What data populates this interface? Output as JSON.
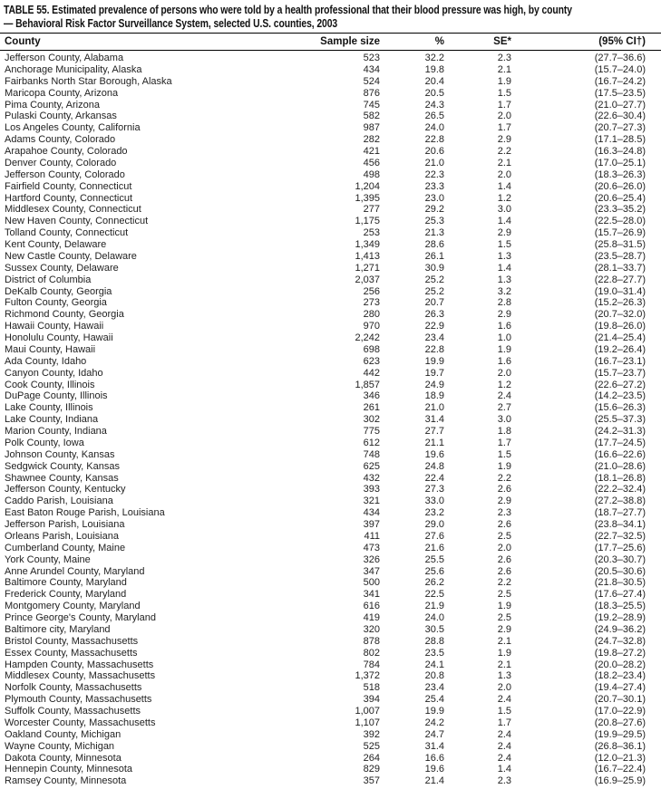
{
  "table": {
    "title_line1": "TABLE 55. Estimated prevalence of persons who were told by a health professional that their blood pressure was high, by county",
    "title_line2": "— Behavioral Risk Factor Surveillance System, selected U.S. counties, 2003",
    "columns": [
      "County",
      "Sample size",
      "%",
      "SE*",
      "(95% CI†)"
    ],
    "rows": [
      [
        "Jefferson County, Alabama",
        "523",
        "32.2",
        "2.3",
        "(27.7–36.6)"
      ],
      [
        "Anchorage Municipality, Alaska",
        "434",
        "19.8",
        "2.1",
        "(15.7–24.0)"
      ],
      [
        "Fairbanks North Star Borough, Alaska",
        "524",
        "20.4",
        "1.9",
        "(16.7–24.2)"
      ],
      [
        "Maricopa County, Arizona",
        "876",
        "20.5",
        "1.5",
        "(17.5–23.5)"
      ],
      [
        "Pima County, Arizona",
        "745",
        "24.3",
        "1.7",
        "(21.0–27.7)"
      ],
      [
        "Pulaski County, Arkansas",
        "582",
        "26.5",
        "2.0",
        "(22.6–30.4)"
      ],
      [
        "Los Angeles County, California",
        "987",
        "24.0",
        "1.7",
        "(20.7–27.3)"
      ],
      [
        "Adams County, Colorado",
        "282",
        "22.8",
        "2.9",
        "(17.1–28.5)"
      ],
      [
        "Arapahoe County, Colorado",
        "421",
        "20.6",
        "2.2",
        "(16.3–24.8)"
      ],
      [
        "Denver County, Colorado",
        "456",
        "21.0",
        "2.1",
        "(17.0–25.1)"
      ],
      [
        "Jefferson County, Colorado",
        "498",
        "22.3",
        "2.0",
        "(18.3–26.3)"
      ],
      [
        "Fairfield County, Connecticut",
        "1,204",
        "23.3",
        "1.4",
        "(20.6–26.0)"
      ],
      [
        "Hartford County, Connecticut",
        "1,395",
        "23.0",
        "1.2",
        "(20.6–25.4)"
      ],
      [
        "Middlesex County, Connecticut",
        "277",
        "29.2",
        "3.0",
        "(23.3–35.2)"
      ],
      [
        "New Haven County, Connecticut",
        "1,175",
        "25.3",
        "1.4",
        "(22.5–28.0)"
      ],
      [
        "Tolland County, Connecticut",
        "253",
        "21.3",
        "2.9",
        "(15.7–26.9)"
      ],
      [
        "Kent County, Delaware",
        "1,349",
        "28.6",
        "1.5",
        "(25.8–31.5)"
      ],
      [
        "New Castle County, Delaware",
        "1,413",
        "26.1",
        "1.3",
        "(23.5–28.7)"
      ],
      [
        "Sussex County, Delaware",
        "1,271",
        "30.9",
        "1.4",
        "(28.1–33.7)"
      ],
      [
        "District of Columbia",
        "2,037",
        "25.2",
        "1.3",
        "(22.8–27.7)"
      ],
      [
        "DeKalb County, Georgia",
        "256",
        "25.2",
        "3.2",
        "(19.0–31.4)"
      ],
      [
        "Fulton County, Georgia",
        "273",
        "20.7",
        "2.8",
        "(15.2–26.3)"
      ],
      [
        "Richmond County, Georgia",
        "280",
        "26.3",
        "2.9",
        "(20.7–32.0)"
      ],
      [
        "Hawaii County, Hawaii",
        "970",
        "22.9",
        "1.6",
        "(19.8–26.0)"
      ],
      [
        "Honolulu County, Hawaii",
        "2,242",
        "23.4",
        "1.0",
        "(21.4–25.4)"
      ],
      [
        "Maui County, Hawaii",
        "698",
        "22.8",
        "1.9",
        "(19.2–26.4)"
      ],
      [
        "Ada County, Idaho",
        "623",
        "19.9",
        "1.6",
        "(16.7–23.1)"
      ],
      [
        "Canyon County, Idaho",
        "442",
        "19.7",
        "2.0",
        "(15.7–23.7)"
      ],
      [
        "Cook County, Illinois",
        "1,857",
        "24.9",
        "1.2",
        "(22.6–27.2)"
      ],
      [
        "DuPage County, Illinois",
        "346",
        "18.9",
        "2.4",
        "(14.2–23.5)"
      ],
      [
        "Lake County, Illinois",
        "261",
        "21.0",
        "2.7",
        "(15.6–26.3)"
      ],
      [
        "Lake County, Indiana",
        "302",
        "31.4",
        "3.0",
        "(25.5–37.3)"
      ],
      [
        "Marion County, Indiana",
        "775",
        "27.7",
        "1.8",
        "(24.2–31.3)"
      ],
      [
        "Polk County, Iowa",
        "612",
        "21.1",
        "1.7",
        "(17.7–24.5)"
      ],
      [
        "Johnson County, Kansas",
        "748",
        "19.6",
        "1.5",
        "(16.6–22.6)"
      ],
      [
        "Sedgwick County, Kansas",
        "625",
        "24.8",
        "1.9",
        "(21.0–28.6)"
      ],
      [
        "Shawnee County, Kansas",
        "432",
        "22.4",
        "2.2",
        "(18.1–26.8)"
      ],
      [
        "Jefferson County, Kentucky",
        "393",
        "27.3",
        "2.6",
        "(22.2–32.4)"
      ],
      [
        "Caddo Parish, Louisiana",
        "321",
        "33.0",
        "2.9",
        "(27.2–38.8)"
      ],
      [
        "East Baton Rouge Parish, Louisiana",
        "434",
        "23.2",
        "2.3",
        "(18.7–27.7)"
      ],
      [
        "Jefferson Parish, Louisiana",
        "397",
        "29.0",
        "2.6",
        "(23.8–34.1)"
      ],
      [
        "Orleans Parish, Louisiana",
        "411",
        "27.6",
        "2.5",
        "(22.7–32.5)"
      ],
      [
        "Cumberland County, Maine",
        "473",
        "21.6",
        "2.0",
        "(17.7–25.6)"
      ],
      [
        "York County, Maine",
        "326",
        "25.5",
        "2.6",
        "(20.3–30.7)"
      ],
      [
        "Anne Arundel County, Maryland",
        "347",
        "25.6",
        "2.6",
        "(20.5–30.6)"
      ],
      [
        "Baltimore County, Maryland",
        "500",
        "26.2",
        "2.2",
        "(21.8–30.5)"
      ],
      [
        "Frederick County, Maryland",
        "341",
        "22.5",
        "2.5",
        "(17.6–27.4)"
      ],
      [
        "Montgomery County, Maryland",
        "616",
        "21.9",
        "1.9",
        "(18.3–25.5)"
      ],
      [
        "Prince George's County, Maryland",
        "419",
        "24.0",
        "2.5",
        "(19.2–28.9)"
      ],
      [
        "Baltimore city, Maryland",
        "320",
        "30.5",
        "2.9",
        "(24.9–36.2)"
      ],
      [
        "Bristol County, Massachusetts",
        "878",
        "28.8",
        "2.1",
        "(24.7–32.8)"
      ],
      [
        "Essex County, Massachusetts",
        "802",
        "23.5",
        "1.9",
        "(19.8–27.2)"
      ],
      [
        "Hampden County, Massachusetts",
        "784",
        "24.1",
        "2.1",
        "(20.0–28.2)"
      ],
      [
        "Middlesex County, Massachusetts",
        "1,372",
        "20.8",
        "1.3",
        "(18.2–23.4)"
      ],
      [
        "Norfolk County, Massachusetts",
        "518",
        "23.4",
        "2.0",
        "(19.4–27.4)"
      ],
      [
        "Plymouth County, Massachusetts",
        "394",
        "25.4",
        "2.4",
        "(20.7–30.1)"
      ],
      [
        "Suffolk County, Massachusetts",
        "1,007",
        "19.9",
        "1.5",
        "(17.0–22.9)"
      ],
      [
        "Worcester County, Massachusetts",
        "1,107",
        "24.2",
        "1.7",
        "(20.8–27.6)"
      ],
      [
        "Oakland County, Michigan",
        "392",
        "24.7",
        "2.4",
        "(19.9–29.5)"
      ],
      [
        "Wayne County, Michigan",
        "525",
        "31.4",
        "2.4",
        "(26.8–36.1)"
      ],
      [
        "Dakota County, Minnesota",
        "264",
        "16.6",
        "2.4",
        "(12.0–21.3)"
      ],
      [
        "Hennepin County, Minnesota",
        "829",
        "19.6",
        "1.4",
        "(16.7–22.4)"
      ],
      [
        "Ramsey County, Minnesota",
        "357",
        "21.4",
        "2.3",
        "(16.9–25.9)"
      ]
    ]
  }
}
